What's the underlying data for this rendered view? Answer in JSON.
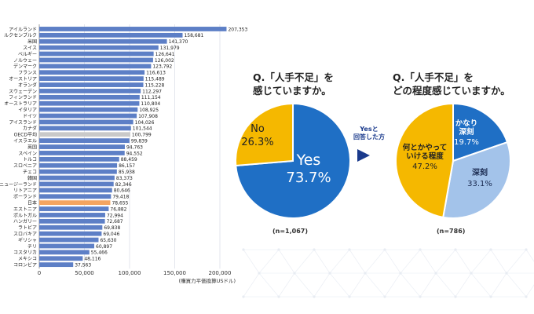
{
  "chart_data": [
    {
      "type": "bar",
      "orientation": "horizontal",
      "categories": [
        "アイルランド",
        "ルクセンブルク",
        "米国",
        "スイス",
        "ベルギー",
        "ノルウェー",
        "デンマーク",
        "フランス",
        "オーストリア",
        "オランダ",
        "スウェーデン",
        "フィンランド",
        "オーストラリア",
        "イタリア",
        "ドイツ",
        "アイスランド",
        "カナダ",
        "OECD平均",
        "イスラエル",
        "英国",
        "スペイン",
        "トルコ",
        "スロベニア",
        "チェコ",
        "韓国",
        "ニュージーランド",
        "リトアニア",
        "ポーランド",
        "日本",
        "エストニア",
        "ポルトガル",
        "ハンガリー",
        "ラトビア",
        "スロバキア",
        "ギリシャ",
        "チリ",
        "コスタリカ",
        "メキシコ",
        "コロンビア"
      ],
      "values": [
        207353,
        158681,
        141370,
        131979,
        126641,
        126002,
        123792,
        116613,
        115489,
        115228,
        112297,
        111154,
        110804,
        108925,
        107908,
        104026,
        101544,
        100799,
        99839,
        94763,
        94552,
        88459,
        86157,
        85938,
        83373,
        82346,
        80646,
        79418,
        78655,
        76882,
        72994,
        72687,
        69838,
        69046,
        65630,
        60897,
        55466,
        48116,
        37563
      ],
      "value_labels": [
        "207,353",
        "158,681",
        "141,370",
        "131,979",
        "126,641",
        "126,002",
        "123,792",
        "116,613",
        "115,489",
        "115,228",
        "112,297",
        "111,154",
        "110,804",
        "108,925",
        "107,908",
        "104,026",
        "101,544",
        "100,799",
        "99,839",
        "94,763",
        "94,552",
        "88,459",
        "86,157",
        "85,938",
        "83,373",
        "82,346",
        "80,646",
        "79,418",
        "78,655",
        "76,882",
        "72,994",
        "72,687",
        "69,838",
        "69,046",
        "65,630",
        "60,897",
        "55,466",
        "48,116",
        "37,563"
      ],
      "highlight": {
        "OECD平均": "#c9c9c9",
        "日本": "#f4a460"
      },
      "bar_color": "#5d7fc6",
      "xlim": [
        0,
        200000
      ],
      "xticks": [
        0,
        50000,
        100000,
        150000,
        200000
      ],
      "xtick_labels": [
        "0",
        "50,000",
        "100,000",
        "150,000",
        "200,000"
      ],
      "unit_label": "(購買力平価換算USドル)",
      "grid": true
    },
    {
      "type": "pie",
      "title": [
        "Q.「人手不足」を",
        "感じていますか。"
      ],
      "slices": [
        {
          "label": "Yes",
          "value": 73.7,
          "value_label": "73.7%",
          "color": "#1f6fc5",
          "text_color": "#ffffff"
        },
        {
          "label": "No",
          "value": 26.3,
          "value_label": "26.3%",
          "color": "#f5b800",
          "text_color": "#222222"
        }
      ],
      "n_label": "(n=1,067)"
    },
    {
      "type": "pie",
      "title": [
        "Q.「人手不足」を",
        "どの程度感じていますか。"
      ],
      "slices": [
        {
          "label": "かなり深刻",
          "label_lines": [
            "かなり",
            "深刻"
          ],
          "value": 19.7,
          "value_label": "19.7%",
          "color": "#1f6fc5",
          "text_color": "#ffffff"
        },
        {
          "label": "深刻",
          "label_lines": [
            "深刻"
          ],
          "value": 33.1,
          "value_label": "33.1%",
          "color": "#a3c3ea",
          "text_color": "#1a2a50"
        },
        {
          "label": "何とかやっていける程度",
          "label_lines": [
            "何とかやって",
            "いける程度"
          ],
          "value": 47.2,
          "value_label": "47.2%",
          "color": "#f5b800",
          "text_color": "#222222"
        }
      ],
      "n_label": "(n=786)"
    }
  ],
  "arrow_label": [
    "Yesと",
    "回答した方"
  ]
}
